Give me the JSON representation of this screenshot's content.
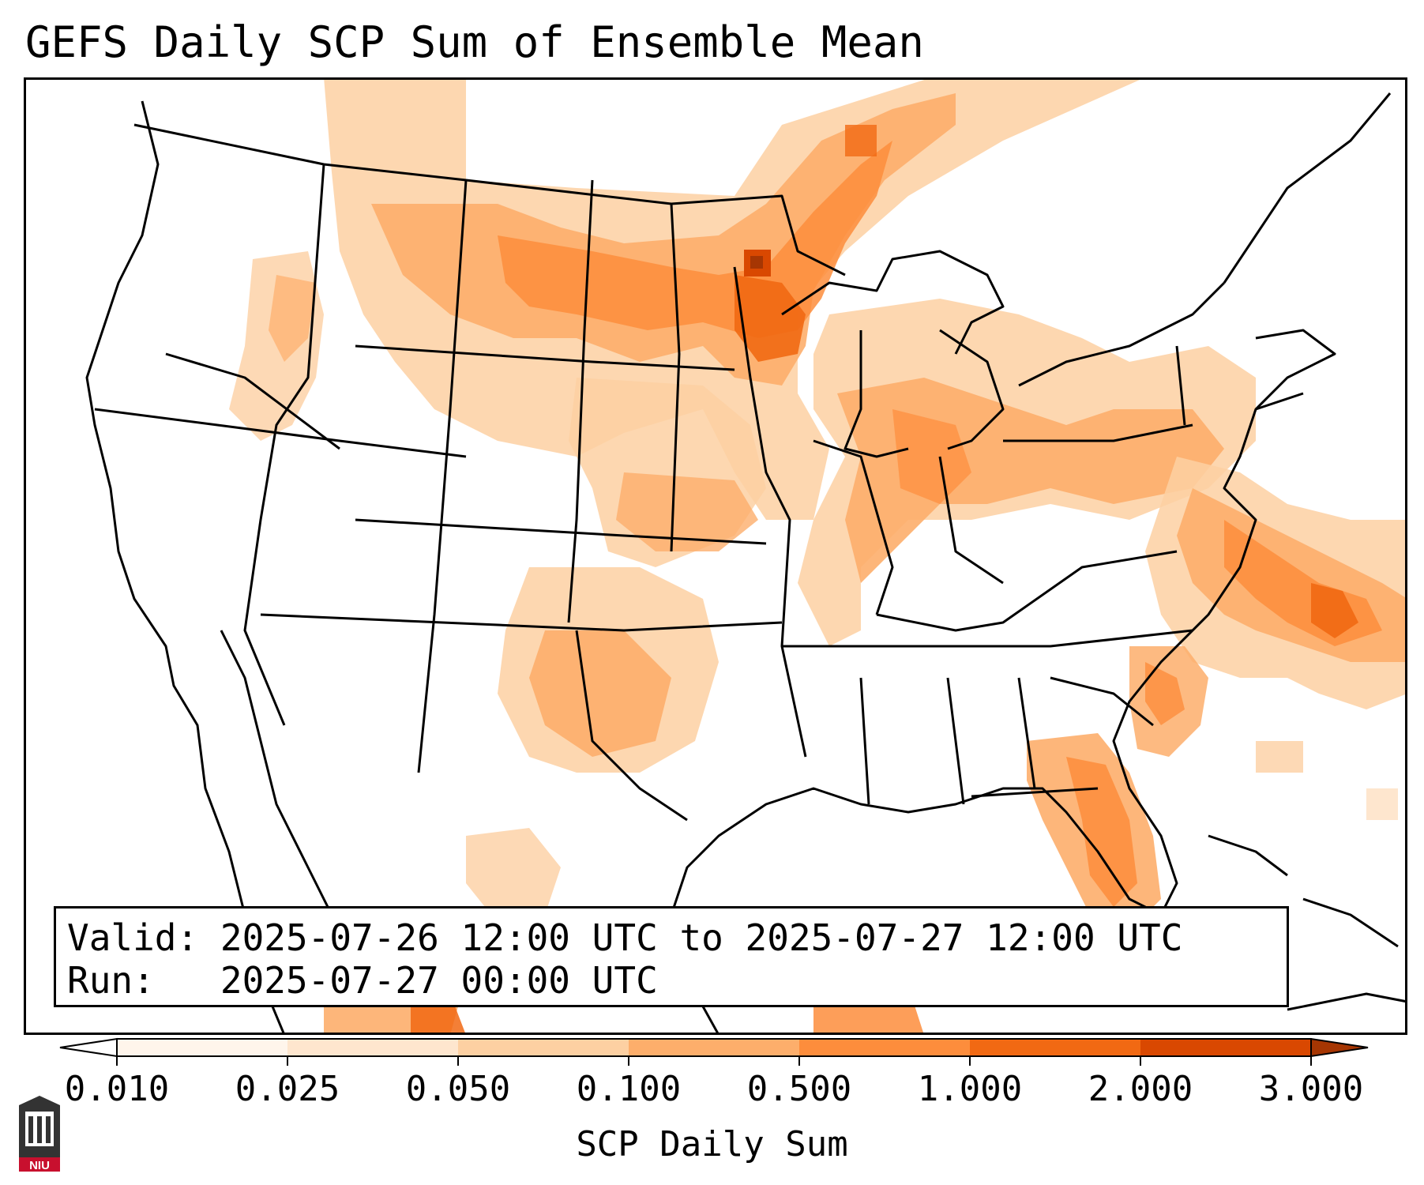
{
  "title": "GEFS Daily SCP Sum of Ensemble Mean",
  "info": {
    "valid_label": "Valid:",
    "valid_value": "2025-07-26 12:00 UTC to 2025-07-27 12:00 UTC",
    "run_label": "Run:",
    "run_value": "2025-07-27 00:00 UTC"
  },
  "colorbar": {
    "title": "SCP Daily Sum",
    "tick_labels": [
      "0.010",
      "0.025",
      "0.050",
      "0.100",
      "0.500",
      "1.000",
      "2.000",
      "3.000"
    ],
    "colors": [
      "#fff5eb",
      "#fee6ce",
      "#fdd0a2",
      "#fdae6b",
      "#fd8d3c",
      "#f16913",
      "#d94801",
      "#a63603"
    ],
    "extend": "both"
  },
  "logo": {
    "text": "NIU"
  },
  "map_data": {
    "region": "Contiguous United States",
    "field": "SCP daily sum (ensemble mean)",
    "notable_maxima": [
      "eastern North Dakota",
      "Delmarva / North Carolina coast and offshore Atlantic",
      "Florida peninsula",
      "northern Great Plains",
      "western Texas"
    ]
  }
}
